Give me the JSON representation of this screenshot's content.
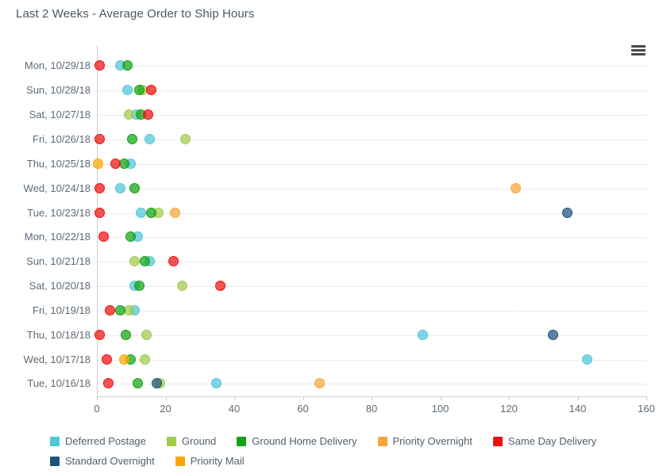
{
  "chart_data": {
    "type": "scatter",
    "orientation": "horizontal",
    "title": "Last 2 Weeks - Average Order to Ship Hours",
    "xlabel": "",
    "ylabel": "",
    "xlim": [
      0,
      160
    ],
    "x_ticks": [
      0,
      20,
      40,
      60,
      80,
      100,
      120,
      140,
      160
    ],
    "grid": "dotted-horizontal-rows",
    "legend_position": "bottom",
    "categories": [
      "Mon, 10/29/18",
      "Sun, 10/28/18",
      "Sat, 10/27/18",
      "Fri, 10/26/18",
      "Thu, 10/25/18",
      "Wed, 10/24/18",
      "Tue, 10/23/18",
      "Mon, 10/22/18",
      "Sun, 10/21/18",
      "Sat, 10/20/18",
      "Fri, 10/19/18",
      "Thu, 10/18/18",
      "Wed, 10/17/18",
      "Tue, 10/16/18"
    ],
    "series": [
      {
        "name": "Deferred Postage",
        "color": "#4fc6d9",
        "values": [
          7,
          9,
          11.5,
          15.5,
          10,
          7,
          13,
          12,
          15.5,
          11,
          11,
          95,
          143,
          35
        ]
      },
      {
        "name": "Ground",
        "color": "#a3ca4d",
        "values": [
          null,
          13.5,
          9.5,
          26,
          null,
          null,
          18,
          null,
          11,
          25,
          9.5,
          14.5,
          14,
          18.5
        ]
      },
      {
        "name": "Ground Home Delivery",
        "color": "#12a312",
        "values": [
          9,
          12.5,
          13,
          10.5,
          8,
          11,
          16,
          10,
          14,
          12.5,
          7,
          8.5,
          10,
          12
        ]
      },
      {
        "name": "Priority Overnight",
        "color": "#f9a63c",
        "values": [
          null,
          null,
          null,
          null,
          null,
          122,
          23,
          null,
          null,
          null,
          null,
          null,
          null,
          65
        ]
      },
      {
        "name": "Same Day Delivery",
        "color": "#ef1010",
        "values": [
          1,
          16,
          15,
          1,
          5.5,
          1,
          1,
          2,
          22.5,
          36,
          4,
          1,
          3,
          3.5
        ]
      },
      {
        "name": "Standard Overnight",
        "color": "#20527a",
        "values": [
          null,
          null,
          null,
          null,
          null,
          null,
          137,
          null,
          null,
          null,
          null,
          133,
          null,
          17.5
        ]
      },
      {
        "name": "Priority Mail",
        "color": "#f9a800",
        "values": [
          null,
          null,
          null,
          null,
          0.5,
          null,
          null,
          null,
          null,
          null,
          null,
          null,
          8,
          null
        ]
      }
    ]
  },
  "toolbar": {
    "menu_icon": "hamburger"
  }
}
